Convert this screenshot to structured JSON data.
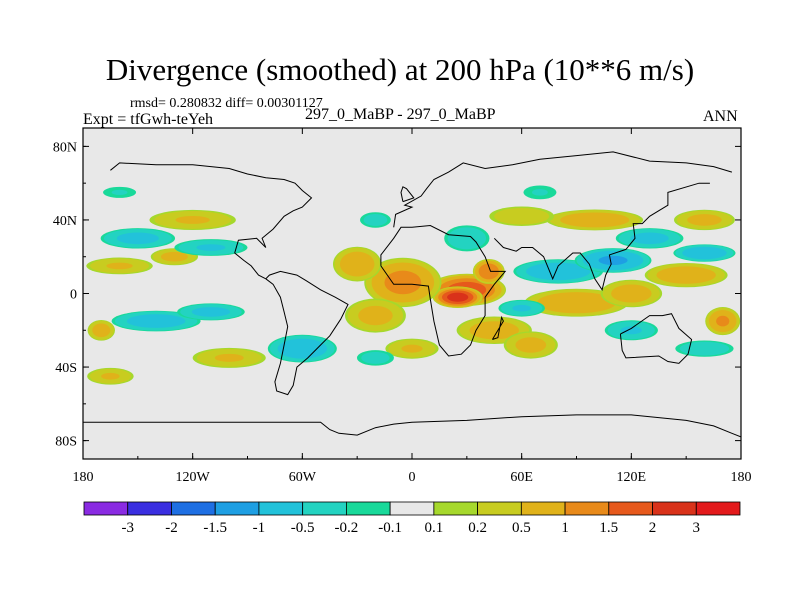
{
  "chart_data": {
    "type": "heatmap",
    "title": "Divergence (smoothed) at 200 hPa (10**6 m/s)",
    "stats_label": "rmsd= 0.280832  diff= 0.00301127",
    "expt_label": "Expt = tfGwh-teYeh",
    "comparison_label": "297_0_MaBP - 297_0_MaBP",
    "season_label": "ANN",
    "xlabel": "",
    "ylabel": "",
    "xlim": [
      -180,
      180
    ],
    "ylim": [
      -90,
      90
    ],
    "x_ticks": [
      {
        "value": -180,
        "label": "180"
      },
      {
        "value": -120,
        "label": "120W"
      },
      {
        "value": -60,
        "label": "60W"
      },
      {
        "value": 0,
        "label": "0"
      },
      {
        "value": 60,
        "label": "60E"
      },
      {
        "value": 120,
        "label": "120E"
      },
      {
        "value": 180,
        "label": "180"
      }
    ],
    "y_ticks": [
      {
        "value": 80,
        "label": "80N"
      },
      {
        "value": 40,
        "label": "40N"
      },
      {
        "value": 0,
        "label": "0"
      },
      {
        "value": -40,
        "label": "40S"
      },
      {
        "value": -80,
        "label": "80S"
      }
    ],
    "colorbar": {
      "labels": [
        "-3",
        "-2",
        "-1.5",
        "-1",
        "-0.5",
        "-0.2",
        "-0.1",
        "0.1",
        "0.2",
        "0.5",
        "1",
        "1.5",
        "2",
        "3"
      ],
      "colors": [
        "#8a2be2",
        "#3a2ee0",
        "#1e6fe3",
        "#1e9fe3",
        "#22c2da",
        "#23d3c1",
        "#19d99a",
        "#e8e8e8",
        "#a6d82c",
        "#c8cc20",
        "#e0b21a",
        "#e88a1a",
        "#e6591c",
        "#d9321a",
        "#e31a1c"
      ]
    },
    "background_color": "#e8e8e8",
    "features": [
      {
        "lon": 30,
        "lat": 2,
        "rlon": 22,
        "rlat": 9,
        "value": 1.7
      },
      {
        "lon": 25,
        "lat": -2,
        "rlon": 14,
        "rlat": 6,
        "value": 2.1
      },
      {
        "lon": 42,
        "lat": 12,
        "rlon": 9,
        "rlat": 7,
        "value": 1.4
      },
      {
        "lon": -5,
        "lat": 6,
        "rlon": 22,
        "rlat": 14,
        "value": 1.1
      },
      {
        "lon": -30,
        "lat": 16,
        "rlon": 14,
        "rlat": 10,
        "value": 0.8
      },
      {
        "lon": -20,
        "lat": -12,
        "rlon": 18,
        "rlat": 10,
        "value": 0.6
      },
      {
        "lon": 45,
        "lat": -20,
        "rlon": 22,
        "rlat": 8,
        "value": 0.7
      },
      {
        "lon": 65,
        "lat": -28,
        "rlon": 16,
        "rlat": 8,
        "value": 0.6
      },
      {
        "lon": 90,
        "lat": -5,
        "rlon": 30,
        "rlat": 8,
        "value": 0.9
      },
      {
        "lon": 120,
        "lat": 0,
        "rlon": 18,
        "rlat": 8,
        "value": 0.7
      },
      {
        "lon": 150,
        "lat": 10,
        "rlon": 24,
        "rlat": 7,
        "value": 0.8
      },
      {
        "lon": 170,
        "lat": -15,
        "rlon": 10,
        "rlat": 8,
        "value": 1.0
      },
      {
        "lon": 100,
        "lat": 40,
        "rlon": 28,
        "rlat": 6,
        "value": 0.8
      },
      {
        "lon": 160,
        "lat": 40,
        "rlon": 18,
        "rlat": 6,
        "value": 0.6
      },
      {
        "lon": -120,
        "lat": 40,
        "rlon": 26,
        "rlat": 6,
        "value": 0.5
      },
      {
        "lon": -160,
        "lat": 15,
        "rlon": 20,
        "rlat": 5,
        "value": 0.5
      },
      {
        "lon": -130,
        "lat": 20,
        "rlon": 14,
        "rlat": 5,
        "value": 0.6
      },
      {
        "lon": -100,
        "lat": -35,
        "rlon": 22,
        "rlat": 6,
        "value": 0.5
      },
      {
        "lon": -165,
        "lat": -45,
        "rlon": 14,
        "rlat": 5,
        "value": 0.5
      },
      {
        "lon": -170,
        "lat": -20,
        "rlon": 8,
        "rlat": 6,
        "value": 0.7
      },
      {
        "lon": 0,
        "lat": -30,
        "rlon": 16,
        "rlat": 6,
        "value": 0.5
      },
      {
        "lon": 60,
        "lat": 42,
        "rlon": 20,
        "rlat": 6,
        "value": 0.4
      },
      {
        "lon": 80,
        "lat": 12,
        "rlon": 26,
        "rlat": 7,
        "value": -0.8
      },
      {
        "lon": 110,
        "lat": 18,
        "rlon": 22,
        "rlat": 7,
        "value": -1.0
      },
      {
        "lon": 60,
        "lat": -8,
        "rlon": 14,
        "rlat": 5,
        "value": -0.5
      },
      {
        "lon": 130,
        "lat": 30,
        "rlon": 20,
        "rlat": 6,
        "value": -0.6
      },
      {
        "lon": 160,
        "lat": 22,
        "rlon": 18,
        "rlat": 5,
        "value": -0.8
      },
      {
        "lon": -150,
        "lat": 30,
        "rlon": 22,
        "rlat": 6,
        "value": -0.6
      },
      {
        "lon": -110,
        "lat": 25,
        "rlon": 22,
        "rlat": 5,
        "value": -0.5
      },
      {
        "lon": -140,
        "lat": -15,
        "rlon": 26,
        "rlat": 6,
        "value": -0.7
      },
      {
        "lon": -110,
        "lat": -10,
        "rlon": 20,
        "rlat": 5,
        "value": -0.6
      },
      {
        "lon": -60,
        "lat": -30,
        "rlon": 20,
        "rlat": 8,
        "value": -0.8
      },
      {
        "lon": -20,
        "lat": -35,
        "rlon": 12,
        "rlat": 5,
        "value": -0.3
      },
      {
        "lon": 30,
        "lat": 30,
        "rlon": 14,
        "rlat": 8,
        "value": -0.4
      },
      {
        "lon": 120,
        "lat": -20,
        "rlon": 16,
        "rlat": 6,
        "value": -0.5
      },
      {
        "lon": 160,
        "lat": -30,
        "rlon": 18,
        "rlat": 5,
        "value": -0.4
      },
      {
        "lon": -20,
        "lat": 40,
        "rlon": 10,
        "rlat": 5,
        "value": -0.3
      },
      {
        "lon": -160,
        "lat": 55,
        "rlon": 12,
        "rlat": 4,
        "value": -0.2
      },
      {
        "lon": 70,
        "lat": 55,
        "rlon": 12,
        "rlat": 5,
        "value": -0.2
      }
    ],
    "coastlines": [
      [
        [
          -180,
          -70
        ],
        [
          -50,
          -70
        ],
        [
          -45,
          -74
        ],
        [
          -40,
          -76
        ],
        [
          -30,
          -77
        ],
        [
          -20,
          -73
        ],
        [
          -10,
          -71
        ],
        [
          0,
          -70
        ],
        [
          30,
          -69
        ],
        [
          60,
          -67
        ],
        [
          90,
          -66
        ],
        [
          120,
          -66
        ],
        [
          150,
          -69
        ],
        [
          165,
          -72
        ],
        [
          175,
          -76
        ],
        [
          180,
          -78
        ]
      ],
      [
        [
          -80,
          8
        ],
        [
          -76,
          5
        ],
        [
          -72,
          -2
        ],
        [
          -70,
          -10
        ],
        [
          -68,
          -18
        ],
        [
          -70,
          -28
        ],
        [
          -72,
          -38
        ],
        [
          -75,
          -48
        ],
        [
          -74,
          -53
        ],
        [
          -68,
          -55
        ],
        [
          -65,
          -50
        ],
        [
          -63,
          -40
        ],
        [
          -57,
          -35
        ],
        [
          -50,
          -28
        ],
        [
          -45,
          -23
        ],
        [
          -39,
          -14
        ],
        [
          -35,
          -6
        ],
        [
          -42,
          -2
        ],
        [
          -50,
          2
        ],
        [
          -58,
          7
        ],
        [
          -63,
          10
        ],
        [
          -72,
          12
        ],
        [
          -78,
          10
        ],
        [
          -80,
          8
        ]
      ],
      [
        [
          -17,
          15
        ],
        [
          -10,
          5
        ],
        [
          0,
          5
        ],
        [
          9,
          4
        ],
        [
          10,
          -3
        ],
        [
          12,
          -15
        ],
        [
          15,
          -28
        ],
        [
          20,
          -34
        ],
        [
          27,
          -33
        ],
        [
          32,
          -28
        ],
        [
          35,
          -20
        ],
        [
          40,
          -12
        ],
        [
          40,
          -2
        ],
        [
          45,
          5
        ],
        [
          51,
          12
        ],
        [
          43,
          12
        ],
        [
          40,
          20
        ],
        [
          35,
          28
        ],
        [
          32,
          31
        ],
        [
          20,
          32
        ],
        [
          10,
          37
        ],
        [
          0,
          36
        ],
        [
          -6,
          36
        ],
        [
          -10,
          30
        ],
        [
          -17,
          21
        ],
        [
          -17,
          15
        ]
      ],
      [
        [
          -10,
          36
        ],
        [
          -9,
          43
        ],
        [
          0,
          47
        ],
        [
          -4,
          48
        ],
        [
          5,
          53
        ],
        [
          8,
          57
        ],
        [
          12,
          62
        ],
        [
          20,
          66
        ],
        [
          28,
          71
        ],
        [
          40,
          68
        ],
        [
          55,
          70
        ],
        [
          70,
          73
        ],
        [
          90,
          75
        ],
        [
          110,
          77
        ],
        [
          130,
          72
        ],
        [
          150,
          71
        ],
        [
          165,
          69
        ],
        [
          175,
          66
        ]
      ],
      [
        [
          45,
          30
        ],
        [
          50,
          25
        ],
        [
          57,
          23
        ],
        [
          60,
          25
        ],
        [
          66,
          25
        ],
        [
          72,
          20
        ],
        [
          77,
          8
        ],
        [
          80,
          15
        ],
        [
          88,
          22
        ],
        [
          92,
          22
        ],
        [
          97,
          16
        ],
        [
          100,
          8
        ],
        [
          104,
          2
        ],
        [
          106,
          10
        ],
        [
          109,
          16
        ],
        [
          108,
          21
        ],
        [
          117,
          24
        ],
        [
          122,
          30
        ],
        [
          121,
          38
        ],
        [
          126,
          38
        ],
        [
          130,
          42
        ],
        [
          140,
          48
        ],
        [
          140,
          55
        ],
        [
          157,
          60
        ],
        [
          163,
          60
        ]
      ],
      [
        [
          114,
          -22
        ],
        [
          120,
          -19
        ],
        [
          130,
          -12
        ],
        [
          137,
          -12
        ],
        [
          142,
          -11
        ],
        [
          146,
          -19
        ],
        [
          153,
          -25
        ],
        [
          151,
          -33
        ],
        [
          146,
          -38
        ],
        [
          140,
          -37
        ],
        [
          135,
          -34
        ],
        [
          117,
          -35
        ],
        [
          115,
          -31
        ],
        [
          114,
          -22
        ]
      ],
      [
        [
          -5,
          50
        ],
        [
          1,
          52
        ],
        [
          -3,
          57
        ],
        [
          -5,
          58
        ],
        [
          -6,
          55
        ],
        [
          -5,
          50
        ]
      ],
      [
        [
          44,
          -25
        ],
        [
          50,
          -15
        ],
        [
          49,
          -13
        ],
        [
          47,
          -24
        ],
        [
          44,
          -25
        ]
      ],
      [
        [
          -80,
          25
        ],
        [
          -82,
          30
        ],
        [
          -76,
          35
        ],
        [
          -70,
          42
        ],
        [
          -65,
          45
        ],
        [
          -60,
          47
        ],
        [
          -55,
          52
        ],
        [
          -60,
          56
        ],
        [
          -64,
          60
        ],
        [
          -70,
          62
        ],
        [
          -80,
          63
        ],
        [
          -90,
          65
        ],
        [
          -100,
          68
        ],
        [
          -120,
          70
        ],
        [
          -140,
          70
        ],
        [
          -160,
          71
        ],
        [
          -165,
          67
        ]
      ],
      [
        [
          -80,
          25
        ],
        [
          -85,
          30
        ],
        [
          -95,
          29
        ],
        [
          -97,
          22
        ],
        [
          -92,
          18
        ],
        [
          -88,
          15
        ],
        [
          -84,
          10
        ],
        [
          -80,
          8
        ]
      ]
    ]
  }
}
